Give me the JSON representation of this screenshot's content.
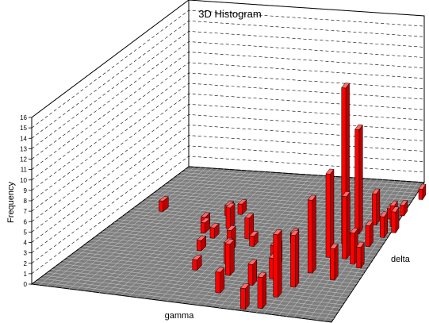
{
  "chart_data": {
    "type": "bar3d",
    "title": "3D Histogram",
    "xlabel": "gamma",
    "ylabel": "delta",
    "zlabel": "Frequency",
    "zlim": [
      0,
      16
    ],
    "z_ticks": [
      "0",
      "1",
      "2",
      "3",
      "4",
      "5",
      "6",
      "7",
      "8",
      "9",
      "10",
      "11",
      "12",
      "13",
      "14",
      "15",
      "16"
    ],
    "grid": true,
    "bar_color": "#ff0000",
    "floor_color": "#7f7f7f",
    "bars": [
      {
        "gx": 0.11,
        "gd": 0.66,
        "value": 1
      },
      {
        "gx": 0.32,
        "gd": 0.57,
        "value": 1
      },
      {
        "gx": 0.34,
        "gd": 0.53,
        "value": 1
      },
      {
        "gx": 0.36,
        "gd": 0.67,
        "value": 1
      },
      {
        "gx": 0.4,
        "gd": 0.69,
        "value": 1
      },
      {
        "gx": 0.39,
        "gd": 0.5,
        "value": 1
      },
      {
        "gx": 0.41,
        "gd": 0.58,
        "value": 2
      },
      {
        "gx": 0.39,
        "gd": 0.4,
        "value": 1
      },
      {
        "gx": 0.44,
        "gd": 0.26,
        "value": 1
      },
      {
        "gx": 0.49,
        "gd": 0.42,
        "value": 2
      },
      {
        "gx": 0.51,
        "gd": 0.52,
        "value": 2
      },
      {
        "gx": 0.52,
        "gd": 0.33,
        "value": 2
      },
      {
        "gx": 0.55,
        "gd": 0.47,
        "value": 1
      },
      {
        "gx": 0.56,
        "gd": 0.25,
        "value": 3
      },
      {
        "gx": 0.58,
        "gd": 0.12,
        "value": 2
      },
      {
        "gx": 0.65,
        "gd": 0.42,
        "value": 1
      },
      {
        "gx": 0.66,
        "gd": 0.2,
        "value": 2
      },
      {
        "gx": 0.69,
        "gd": 0.35,
        "value": 2
      },
      {
        "gx": 0.68,
        "gd": 0.52,
        "value": 1
      },
      {
        "gx": 0.71,
        "gd": 0.26,
        "value": 2
      },
      {
        "gx": 0.7,
        "gd": 0.03,
        "value": 2
      },
      {
        "gx": 0.75,
        "gd": 0.05,
        "value": 3
      },
      {
        "gx": 0.77,
        "gd": 0.14,
        "value": 6
      },
      {
        "gx": 0.8,
        "gd": 0.22,
        "value": 5
      },
      {
        "gx": 0.82,
        "gd": 0.33,
        "value": 7
      },
      {
        "gx": 0.84,
        "gd": 0.45,
        "value": 8
      },
      {
        "gx": 0.86,
        "gd": 0.55,
        "value": 15
      },
      {
        "gx": 0.88,
        "gd": 0.63,
        "value": 10
      },
      {
        "gx": 0.9,
        "gd": 0.45,
        "value": 6
      },
      {
        "gx": 0.91,
        "gd": 0.3,
        "value": 3
      },
      {
        "gx": 0.92,
        "gd": 0.7,
        "value": 3
      },
      {
        "gx": 0.94,
        "gd": 0.42,
        "value": 3
      },
      {
        "gx": 0.95,
        "gd": 0.55,
        "value": 2
      },
      {
        "gx": 0.96,
        "gd": 0.75,
        "value": 1
      },
      {
        "gx": 0.97,
        "gd": 0.4,
        "value": 2
      },
      {
        "gx": 0.98,
        "gd": 0.62,
        "value": 2
      },
      {
        "gx": 0.99,
        "gd": 0.7,
        "value": 2
      },
      {
        "gx": 1.0,
        "gd": 0.78,
        "value": 1
      },
      {
        "gx": 1.01,
        "gd": 0.66,
        "value": 2
      },
      {
        "gx": 1.03,
        "gd": 0.9,
        "value": 1
      }
    ]
  }
}
